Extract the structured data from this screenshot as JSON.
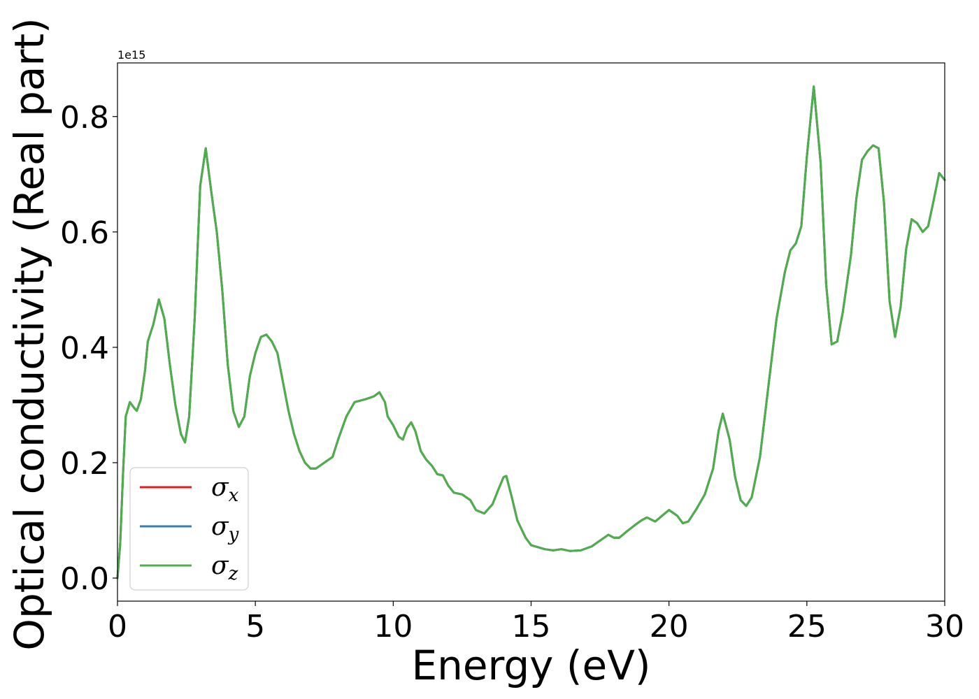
{
  "chart_data": {
    "type": "line",
    "xlabel": "Energy (eV)",
    "ylabel": "Optical conductivity (Real part)",
    "y_offset_label": "1e15",
    "xlim": [
      0,
      30
    ],
    "ylim": [
      -0.04,
      0.893
    ],
    "x_ticks": [
      0,
      5,
      10,
      15,
      20,
      25,
      30
    ],
    "x_tick_labels": [
      "0",
      "5",
      "10",
      "15",
      "20",
      "25",
      "30"
    ],
    "y_ticks": [
      0.0,
      0.2,
      0.4,
      0.6,
      0.8
    ],
    "y_tick_labels": [
      "0.0",
      "0.2",
      "0.4",
      "0.6",
      "0.8"
    ],
    "grid": false,
    "legend_position": "bottom-left",
    "series": [
      {
        "name": "σx",
        "name_base": "σ",
        "name_sub": "x",
        "color": "#e41a1c",
        "points": "shared"
      },
      {
        "name": "σy",
        "name_base": "σ",
        "name_sub": "y",
        "color": "#377eb8",
        "points": "shared"
      },
      {
        "name": "σz",
        "name_base": "σ",
        "name_sub": "z",
        "color": "#4daf4a",
        "points": "shared"
      }
    ],
    "points": [
      [
        0.0,
        0.0
      ],
      [
        0.1,
        0.06
      ],
      [
        0.2,
        0.18
      ],
      [
        0.3,
        0.28
      ],
      [
        0.45,
        0.305
      ],
      [
        0.6,
        0.295
      ],
      [
        0.7,
        0.29
      ],
      [
        0.85,
        0.31
      ],
      [
        1.0,
        0.36
      ],
      [
        1.1,
        0.41
      ],
      [
        1.3,
        0.44
      ],
      [
        1.5,
        0.483
      ],
      [
        1.7,
        0.45
      ],
      [
        1.9,
        0.37
      ],
      [
        2.1,
        0.3
      ],
      [
        2.3,
        0.25
      ],
      [
        2.45,
        0.235
      ],
      [
        2.6,
        0.28
      ],
      [
        2.8,
        0.45
      ],
      [
        3.0,
        0.68
      ],
      [
        3.2,
        0.745
      ],
      [
        3.4,
        0.67
      ],
      [
        3.6,
        0.6
      ],
      [
        3.8,
        0.5
      ],
      [
        4.0,
        0.37
      ],
      [
        4.2,
        0.29
      ],
      [
        4.4,
        0.262
      ],
      [
        4.6,
        0.28
      ],
      [
        4.8,
        0.35
      ],
      [
        5.0,
        0.39
      ],
      [
        5.2,
        0.418
      ],
      [
        5.4,
        0.422
      ],
      [
        5.6,
        0.41
      ],
      [
        5.8,
        0.39
      ],
      [
        6.0,
        0.34
      ],
      [
        6.2,
        0.29
      ],
      [
        6.4,
        0.25
      ],
      [
        6.6,
        0.22
      ],
      [
        6.8,
        0.2
      ],
      [
        7.0,
        0.19
      ],
      [
        7.2,
        0.19
      ],
      [
        7.5,
        0.2
      ],
      [
        7.8,
        0.21
      ],
      [
        8.0,
        0.24
      ],
      [
        8.3,
        0.28
      ],
      [
        8.6,
        0.305
      ],
      [
        9.0,
        0.31
      ],
      [
        9.3,
        0.315
      ],
      [
        9.5,
        0.322
      ],
      [
        9.7,
        0.305
      ],
      [
        9.8,
        0.28
      ],
      [
        10.0,
        0.265
      ],
      [
        10.2,
        0.245
      ],
      [
        10.35,
        0.24
      ],
      [
        10.5,
        0.26
      ],
      [
        10.65,
        0.27
      ],
      [
        10.8,
        0.255
      ],
      [
        11.0,
        0.22
      ],
      [
        11.2,
        0.205
      ],
      [
        11.4,
        0.195
      ],
      [
        11.6,
        0.18
      ],
      [
        11.8,
        0.178
      ],
      [
        12.0,
        0.16
      ],
      [
        12.2,
        0.148
      ],
      [
        12.5,
        0.145
      ],
      [
        12.8,
        0.135
      ],
      [
        13.0,
        0.118
      ],
      [
        13.3,
        0.112
      ],
      [
        13.6,
        0.128
      ],
      [
        13.8,
        0.152
      ],
      [
        14.0,
        0.175
      ],
      [
        14.1,
        0.177
      ],
      [
        14.3,
        0.14
      ],
      [
        14.5,
        0.1
      ],
      [
        14.8,
        0.07
      ],
      [
        15.0,
        0.057
      ],
      [
        15.5,
        0.05
      ],
      [
        15.8,
        0.048
      ],
      [
        16.1,
        0.05
      ],
      [
        16.4,
        0.047
      ],
      [
        16.8,
        0.048
      ],
      [
        17.2,
        0.055
      ],
      [
        17.5,
        0.065
      ],
      [
        17.8,
        0.075
      ],
      [
        18.0,
        0.07
      ],
      [
        18.2,
        0.07
      ],
      [
        18.5,
        0.082
      ],
      [
        18.8,
        0.093
      ],
      [
        19.0,
        0.1
      ],
      [
        19.2,
        0.105
      ],
      [
        19.5,
        0.098
      ],
      [
        19.8,
        0.11
      ],
      [
        20.0,
        0.118
      ],
      [
        20.3,
        0.108
      ],
      [
        20.5,
        0.095
      ],
      [
        20.7,
        0.098
      ],
      [
        21.0,
        0.12
      ],
      [
        21.3,
        0.145
      ],
      [
        21.6,
        0.19
      ],
      [
        21.8,
        0.255
      ],
      [
        21.95,
        0.285
      ],
      [
        22.2,
        0.24
      ],
      [
        22.4,
        0.175
      ],
      [
        22.6,
        0.135
      ],
      [
        22.8,
        0.125
      ],
      [
        23.0,
        0.14
      ],
      [
        23.3,
        0.21
      ],
      [
        23.6,
        0.33
      ],
      [
        23.9,
        0.45
      ],
      [
        24.2,
        0.53
      ],
      [
        24.4,
        0.568
      ],
      [
        24.6,
        0.58
      ],
      [
        24.8,
        0.61
      ],
      [
        25.0,
        0.73
      ],
      [
        25.25,
        0.852
      ],
      [
        25.5,
        0.72
      ],
      [
        25.7,
        0.51
      ],
      [
        25.9,
        0.405
      ],
      [
        26.1,
        0.41
      ],
      [
        26.3,
        0.46
      ],
      [
        26.6,
        0.56
      ],
      [
        26.8,
        0.66
      ],
      [
        27.0,
        0.725
      ],
      [
        27.2,
        0.74
      ],
      [
        27.4,
        0.75
      ],
      [
        27.6,
        0.745
      ],
      [
        27.8,
        0.65
      ],
      [
        28.0,
        0.48
      ],
      [
        28.2,
        0.418
      ],
      [
        28.4,
        0.47
      ],
      [
        28.6,
        0.57
      ],
      [
        28.8,
        0.622
      ],
      [
        29.0,
        0.615
      ],
      [
        29.2,
        0.6
      ],
      [
        29.4,
        0.61
      ],
      [
        29.6,
        0.655
      ],
      [
        29.8,
        0.702
      ],
      [
        30.0,
        0.69
      ]
    ]
  }
}
